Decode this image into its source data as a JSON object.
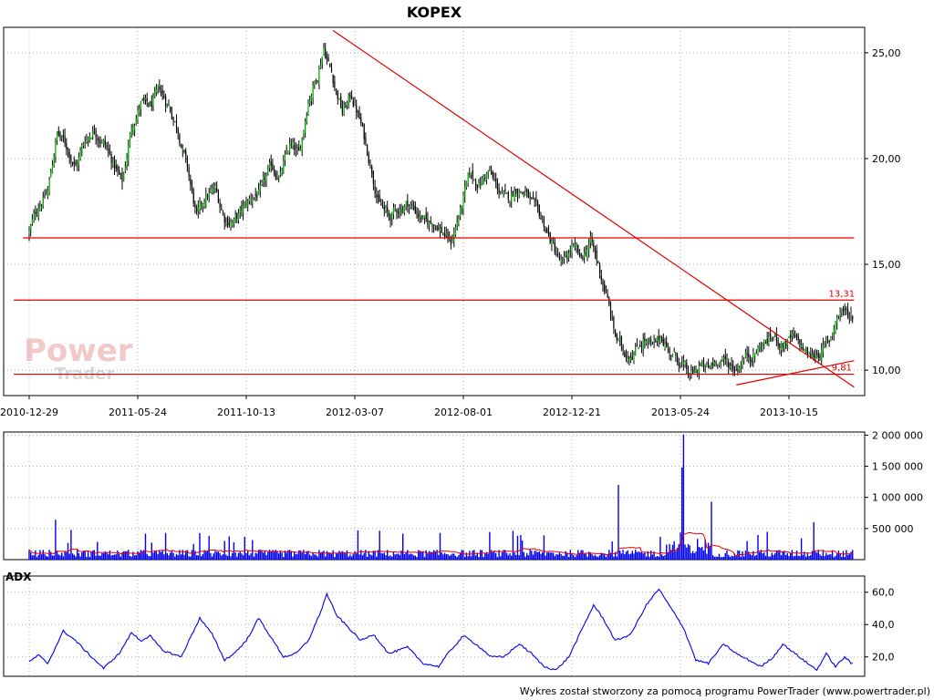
{
  "chart_data": [
    {
      "type": "candlestick",
      "title": "KOPEX",
      "x_labels": [
        "2010-12-29",
        "2011-05-24",
        "2011-10-13",
        "2012-03-07",
        "2012-08-01",
        "2012-12-21",
        "2013-05-24",
        "2013-10-15"
      ],
      "yticks": [
        10,
        15,
        20,
        25
      ],
      "ytick_labels": [
        "10,00",
        "15,00",
        "20,00",
        "25,00"
      ],
      "ylim": [
        8.8,
        26.2
      ],
      "grid": true,
      "price_anchors": [
        [
          0,
          16.5
        ],
        [
          6,
          17.8
        ],
        [
          12,
          18.4
        ],
        [
          18,
          21.2
        ],
        [
          24,
          20.6
        ],
        [
          30,
          19.6
        ],
        [
          36,
          20.9
        ],
        [
          42,
          21.4
        ],
        [
          48,
          20.8
        ],
        [
          54,
          19.8
        ],
        [
          60,
          18.8
        ],
        [
          66,
          21.5
        ],
        [
          72,
          22.6
        ],
        [
          78,
          22.4
        ],
        [
          84,
          23.2
        ],
        [
          90,
          22.5
        ],
        [
          96,
          21.4
        ],
        [
          102,
          19.5
        ],
        [
          108,
          17.2
        ],
        [
          114,
          18.2
        ],
        [
          120,
          18.5
        ],
        [
          126,
          17.2
        ],
        [
          132,
          17.0
        ],
        [
          138,
          17.6
        ],
        [
          144,
          18.2
        ],
        [
          150,
          18.5
        ],
        [
          156,
          19.6
        ],
        [
          162,
          19.2
        ],
        [
          168,
          20.6
        ],
        [
          174,
          20.1
        ],
        [
          180,
          22.8
        ],
        [
          186,
          24.0
        ],
        [
          190,
          25.3
        ],
        [
          196,
          23.8
        ],
        [
          202,
          22.2
        ],
        [
          208,
          23.0
        ],
        [
          214,
          21.6
        ],
        [
          220,
          19.8
        ],
        [
          226,
          17.8
        ],
        [
          232,
          17.2
        ],
        [
          238,
          17.6
        ],
        [
          244,
          17.9
        ],
        [
          250,
          17.5
        ],
        [
          256,
          16.9
        ],
        [
          262,
          17.0
        ],
        [
          268,
          16.4
        ],
        [
          272,
          16.0
        ],
        [
          278,
          17.5
        ],
        [
          284,
          19.2
        ],
        [
          290,
          18.8
        ],
        [
          296,
          19.4
        ],
        [
          302,
          18.6
        ],
        [
          308,
          18.0
        ],
        [
          314,
          18.6
        ],
        [
          320,
          18.4
        ],
        [
          326,
          17.6
        ],
        [
          332,
          16.9
        ],
        [
          338,
          15.8
        ],
        [
          344,
          14.9
        ],
        [
          350,
          15.8
        ],
        [
          356,
          15.2
        ],
        [
          362,
          16.1
        ],
        [
          366,
          15.2
        ],
        [
          372,
          13.6
        ],
        [
          378,
          11.6
        ],
        [
          384,
          10.8
        ],
        [
          390,
          10.9
        ],
        [
          396,
          11.5
        ],
        [
          402,
          11.0
        ],
        [
          408,
          11.6
        ],
        [
          414,
          10.8
        ],
        [
          420,
          10.4
        ],
        [
          426,
          9.6
        ],
        [
          432,
          10.2
        ],
        [
          438,
          10.0
        ],
        [
          444,
          10.6
        ],
        [
          450,
          10.3
        ],
        [
          456,
          10.1
        ],
        [
          462,
          10.7
        ],
        [
          468,
          10.8
        ],
        [
          474,
          11.3
        ],
        [
          480,
          11.6
        ],
        [
          486,
          11.2
        ],
        [
          492,
          11.5
        ],
        [
          498,
          11.1
        ],
        [
          504,
          10.6
        ],
        [
          510,
          10.9
        ],
        [
          516,
          11.3
        ],
        [
          520,
          12.4
        ],
        [
          524,
          12.9
        ],
        [
          528,
          12.6
        ]
      ],
      "trendlines": [
        {
          "color": "#e00000",
          "from": [
            -4,
            16.25
          ],
          "to": [
            532,
            16.25
          ]
        },
        {
          "color": "#e00000",
          "from": [
            -10,
            13.31
          ],
          "to": [
            532,
            13.31
          ]
        },
        {
          "color": "#e00000",
          "from": [
            -10,
            9.81
          ],
          "to": [
            532,
            9.81
          ]
        },
        {
          "color": "#e00000",
          "from": [
            196,
            26.05
          ],
          "to": [
            532,
            9.2
          ]
        },
        {
          "color": "#e00000",
          "from": [
            456,
            9.3
          ],
          "to": [
            532,
            10.45
          ]
        }
      ],
      "annotations": [
        {
          "text": "13,31",
          "x": 524,
          "y": 13.31
        },
        {
          "text": "9,81",
          "x": 524,
          "y": 9.81
        }
      ],
      "watermark": {
        "line1": "Power",
        "line2": "Trader"
      }
    },
    {
      "type": "bar",
      "title": "",
      "yticks": [
        500000,
        1000000,
        1500000,
        2000000
      ],
      "ytick_labels": [
        "500 000",
        "1 000 000",
        "1 500 000",
        "2 000 000"
      ],
      "ylim": [
        0,
        2050000
      ],
      "spikes": [
        {
          "x": 380,
          "value": 1200000
        },
        {
          "x": 421,
          "value": 1480000
        },
        {
          "x": 422,
          "value": 2010000
        },
        {
          "x": 440,
          "value": 930000
        },
        {
          "x": 506,
          "value": 600000
        },
        {
          "x": 17,
          "value": 640000
        }
      ],
      "colors": {
        "bars": "#0000ee",
        "average": "#e00000"
      }
    },
    {
      "type": "line",
      "title": "ADX",
      "yticks": [
        20,
        40,
        60
      ],
      "ytick_labels": [
        "20,0",
        "40,0",
        "60,0"
      ],
      "ylim": [
        8,
        70
      ],
      "anchors": [
        [
          0,
          17
        ],
        [
          6,
          21
        ],
        [
          12,
          16
        ],
        [
          22,
          36
        ],
        [
          30,
          30
        ],
        [
          38,
          22
        ],
        [
          48,
          13
        ],
        [
          58,
          22
        ],
        [
          66,
          35
        ],
        [
          72,
          30
        ],
        [
          78,
          33
        ],
        [
          86,
          24
        ],
        [
          98,
          20
        ],
        [
          110,
          44
        ],
        [
          118,
          34
        ],
        [
          126,
          18
        ],
        [
          132,
          22
        ],
        [
          140,
          30
        ],
        [
          148,
          44
        ],
        [
          156,
          32
        ],
        [
          164,
          20
        ],
        [
          172,
          22
        ],
        [
          180,
          30
        ],
        [
          188,
          48
        ],
        [
          192,
          59
        ],
        [
          198,
          46
        ],
        [
          206,
          38
        ],
        [
          214,
          30
        ],
        [
          222,
          34
        ],
        [
          232,
          22
        ],
        [
          244,
          26
        ],
        [
          254,
          16
        ],
        [
          264,
          14
        ],
        [
          270,
          22
        ],
        [
          280,
          33
        ],
        [
          288,
          28
        ],
        [
          298,
          20
        ],
        [
          306,
          20
        ],
        [
          316,
          28
        ],
        [
          324,
          22
        ],
        [
          332,
          14
        ],
        [
          340,
          12
        ],
        [
          348,
          20
        ],
        [
          356,
          36
        ],
        [
          364,
          52
        ],
        [
          370,
          44
        ],
        [
          378,
          30
        ],
        [
          388,
          34
        ],
        [
          398,
          52
        ],
        [
          406,
          62
        ],
        [
          414,
          50
        ],
        [
          422,
          38
        ],
        [
          430,
          18
        ],
        [
          438,
          16
        ],
        [
          448,
          28
        ],
        [
          456,
          22
        ],
        [
          464,
          18
        ],
        [
          472,
          14
        ],
        [
          480,
          20
        ],
        [
          486,
          28
        ],
        [
          494,
          22
        ],
        [
          502,
          16
        ],
        [
          508,
          12
        ],
        [
          514,
          22
        ],
        [
          520,
          14
        ],
        [
          526,
          20
        ],
        [
          530,
          16
        ]
      ],
      "color": "#0000ee"
    }
  ],
  "footer": {
    "credit": "Wykres został stworzony za pomocą programu PowerTrader (www.powertrader.pl)"
  }
}
